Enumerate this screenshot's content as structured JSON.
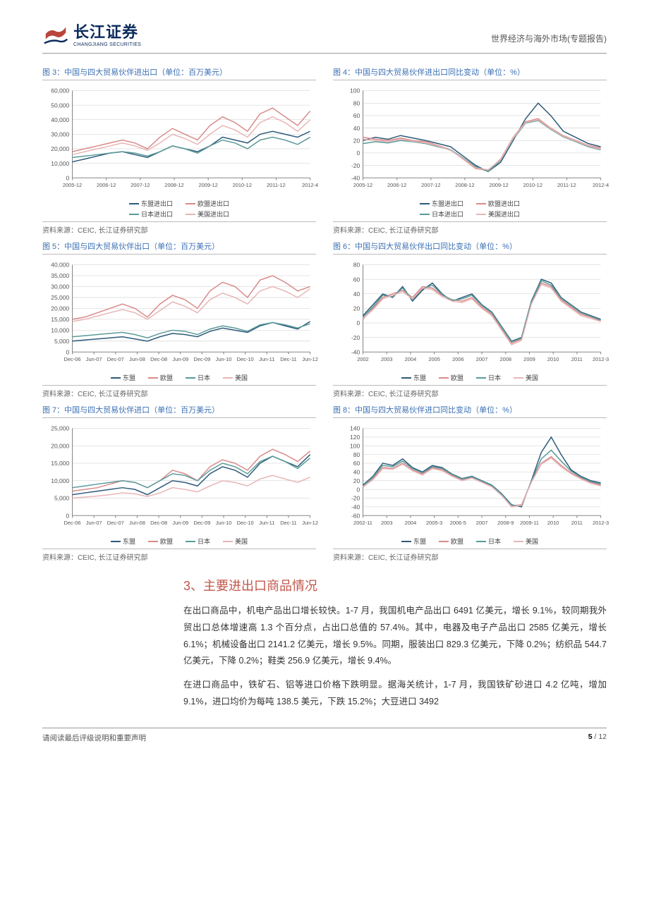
{
  "header": {
    "logo_cn": "长江证券",
    "logo_en": "CHANGJIANG SECURITIES",
    "right_text": "世界经济与海外市场(专题报告)"
  },
  "colors": {
    "title_blue": "#3b6fb3",
    "section_red": "#c1574b",
    "series_dark_blue": "#2d5a7a",
    "series_pink": "#d98a8a",
    "series_teal": "#5a9a9a",
    "series_light_pink": "#e8b5b5",
    "grid": "#cccccc",
    "axis": "#888888"
  },
  "charts": [
    {
      "id": "fig3",
      "title": "图 3：中国与四大贸易伙伴进出口（单位：百万美元）",
      "source": "资料来源：CEIC, 长江证券研究部",
      "ylim": [
        0,
        60000
      ],
      "ytick_step": 10000,
      "x_labels": [
        "2005-12",
        "2006-12",
        "2007-12",
        "2008-12",
        "2009-12",
        "2010-12",
        "2011-12",
        "2012-4"
      ],
      "series": [
        {
          "name": "东盟进出口",
          "color": "#2d5a7a",
          "values": [
            11000,
            13000,
            15000,
            17000,
            18000,
            16000,
            14000,
            18000,
            22000,
            20000,
            18000,
            22000,
            28000,
            26000,
            24000,
            30000,
            32000,
            30000,
            28000,
            32000
          ]
        },
        {
          "name": "欧盟进出口",
          "color": "#d98a8a",
          "values": [
            18000,
            20000,
            22000,
            24000,
            26000,
            24000,
            20000,
            28000,
            34000,
            30000,
            26000,
            36000,
            42000,
            38000,
            32000,
            44000,
            48000,
            42000,
            36000,
            46000
          ]
        },
        {
          "name": "日本进出口",
          "color": "#5a9a9a",
          "values": [
            14000,
            15000,
            16000,
            17000,
            18000,
            17000,
            15000,
            18000,
            22000,
            20000,
            17000,
            22000,
            26000,
            24000,
            20000,
            26000,
            28000,
            26000,
            23000,
            28000
          ]
        },
        {
          "name": "美国进出口",
          "color": "#e8b5b5",
          "values": [
            16000,
            18000,
            20000,
            22000,
            24000,
            22000,
            19000,
            24000,
            30000,
            27000,
            23000,
            30000,
            36000,
            33000,
            28000,
            38000,
            42000,
            38000,
            32000,
            40000
          ]
        }
      ],
      "legend_rows": [
        [
          "东盟进出口",
          "欧盟进出口"
        ],
        [
          "日本进出口",
          "美国进出口"
        ]
      ]
    },
    {
      "id": "fig4",
      "title": "图 4：中国与四大贸易伙伴进出口同比变动（单位：%）",
      "source": "资料来源：CEIC, 长江证券研究部",
      "ylim": [
        -40,
        100
      ],
      "ytick_step": 20,
      "x_labels": [
        "2005-12",
        "2006-12",
        "2007-12",
        "2008-12",
        "2009-12",
        "2010-12",
        "2011-12",
        "2012-4"
      ],
      "series": [
        {
          "name": "东盟进出口",
          "color": "#2d5a7a",
          "values": [
            20,
            25,
            22,
            28,
            24,
            20,
            15,
            10,
            -5,
            -20,
            -30,
            -15,
            20,
            55,
            80,
            60,
            35,
            25,
            15,
            10
          ]
        },
        {
          "name": "欧盟进出口",
          "color": "#d98a8a",
          "values": [
            25,
            22,
            20,
            24,
            20,
            18,
            12,
            5,
            -10,
            -25,
            -28,
            -10,
            25,
            50,
            55,
            40,
            28,
            20,
            12,
            8
          ]
        },
        {
          "name": "日本进出口",
          "color": "#5a9a9a",
          "values": [
            15,
            18,
            16,
            20,
            18,
            15,
            10,
            5,
            -8,
            -22,
            -30,
            -12,
            22,
            48,
            52,
            38,
            26,
            18,
            10,
            5
          ]
        },
        {
          "name": "美国进出口",
          "color": "#e8b5b5",
          "values": [
            22,
            20,
            18,
            22,
            19,
            16,
            11,
            4,
            -9,
            -24,
            -27,
            -11,
            24,
            49,
            53,
            39,
            27,
            19,
            11,
            6
          ]
        }
      ],
      "legend_rows": [
        [
          "东盟进出口",
          "欧盟进出口"
        ],
        [
          "日本进出口",
          "美国进出口"
        ]
      ]
    },
    {
      "id": "fig5",
      "title": "图 5：中国与四大贸易伙伴出口（单位：百万美元）",
      "source": "资料来源：CEIC, 长江证券研究部",
      "ylim": [
        0,
        40000
      ],
      "ytick_step": 5000,
      "x_labels": [
        "Dec-06",
        "Jun-07",
        "Dec-07",
        "Jun-08",
        "Dec-08",
        "Jun-09",
        "Dec-09",
        "Jun-10",
        "Dec-10",
        "Jun-11",
        "Dec-11",
        "Jun-12"
      ],
      "series": [
        {
          "name": "东盟",
          "color": "#2d5a7a",
          "values": [
            5000,
            5500,
            6000,
            6500,
            7000,
            6000,
            5000,
            7000,
            8500,
            8000,
            7000,
            9500,
            11000,
            10000,
            9000,
            12000,
            13500,
            12000,
            10500,
            14000
          ]
        },
        {
          "name": "欧盟",
          "color": "#d98a8a",
          "values": [
            15000,
            16000,
            18000,
            20000,
            22000,
            20000,
            16000,
            22000,
            26000,
            24000,
            20000,
            28000,
            32000,
            30000,
            25000,
            33000,
            35000,
            32000,
            28000,
            30000
          ]
        },
        {
          "name": "日本",
          "color": "#5a9a9a",
          "values": [
            7000,
            7500,
            8000,
            8500,
            9000,
            8000,
            6500,
            8500,
            10000,
            9500,
            8000,
            10500,
            12000,
            11000,
            9500,
            12500,
            13500,
            12500,
            11000,
            13000
          ]
        },
        {
          "name": "美国",
          "color": "#e8b5b5",
          "values": [
            14000,
            15000,
            16500,
            18000,
            19500,
            18000,
            15000,
            19000,
            23000,
            21000,
            18000,
            24000,
            27000,
            25000,
            22000,
            28000,
            30000,
            28000,
            25000,
            29000
          ]
        }
      ],
      "legend_rows": [
        [
          "东盟",
          "欧盟",
          "日本",
          "美国"
        ]
      ]
    },
    {
      "id": "fig6",
      "title": "图 6：中国与四大贸易伙伴出口同比变动（单位：%）",
      "source": "资料来源：CEIC, 长江证券研究部",
      "ylim": [
        -40,
        80
      ],
      "ytick_step": 20,
      "x_labels": [
        "2002",
        "2003",
        "2004",
        "2005",
        "2006",
        "2007",
        "2008",
        "2009",
        "2010",
        "2011",
        "2012-3"
      ],
      "series": [
        {
          "name": "东盟",
          "color": "#2d5a7a",
          "values": [
            10,
            25,
            40,
            35,
            50,
            30,
            45,
            55,
            40,
            30,
            35,
            40,
            25,
            15,
            -5,
            -25,
            -20,
            30,
            60,
            55,
            35,
            25,
            15,
            10,
            5
          ]
        },
        {
          "name": "欧盟",
          "color": "#d98a8a",
          "values": [
            5,
            20,
            35,
            40,
            45,
            35,
            50,
            48,
            38,
            32,
            30,
            35,
            22,
            12,
            -8,
            -28,
            -22,
            28,
            55,
            50,
            32,
            22,
            12,
            8,
            3
          ]
        },
        {
          "name": "日本",
          "color": "#5a9a9a",
          "values": [
            8,
            22,
            38,
            36,
            48,
            32,
            47,
            52,
            39,
            31,
            33,
            38,
            24,
            14,
            -6,
            -26,
            -21,
            29,
            58,
            52,
            34,
            24,
            14,
            9,
            4
          ]
        },
        {
          "name": "美国",
          "color": "#e8b5b5",
          "values": [
            6,
            18,
            33,
            38,
            43,
            33,
            48,
            46,
            36,
            30,
            28,
            33,
            20,
            10,
            -10,
            -30,
            -24,
            26,
            53,
            48,
            30,
            20,
            10,
            6,
            2
          ]
        }
      ],
      "legend_rows": [
        [
          "东盟",
          "欧盟",
          "日本",
          "美国"
        ]
      ]
    },
    {
      "id": "fig7",
      "title": "图 7：中国与四大贸易伙伴进口（单位：百万美元）",
      "source": "资料来源：CEIC, 长江证券研究部",
      "ylim": [
        0,
        25000
      ],
      "ytick_step": 5000,
      "x_labels": [
        "Dec-06",
        "Jun-07",
        "Dec-07",
        "Jun-08",
        "Dec-08",
        "Jun-09",
        "Dec-09",
        "Jun-10",
        "Dec-10",
        "Jun-11",
        "Dec-11",
        "Jun-12"
      ],
      "series": [
        {
          "name": "东盟",
          "color": "#2d5a7a",
          "values": [
            6000,
            6500,
            7000,
            7500,
            8000,
            7500,
            6000,
            8000,
            10000,
            9500,
            8500,
            12000,
            14000,
            13000,
            11000,
            15000,
            17000,
            15500,
            14000,
            17500
          ]
        },
        {
          "name": "欧盟",
          "color": "#d98a8a",
          "values": [
            7000,
            7500,
            8000,
            9000,
            10000,
            9500,
            8000,
            10000,
            13000,
            12000,
            10000,
            14000,
            16000,
            15000,
            13000,
            17000,
            19000,
            17500,
            15500,
            18500
          ]
        },
        {
          "name": "日本",
          "color": "#5a9a9a",
          "values": [
            8000,
            8500,
            9000,
            9500,
            10000,
            9500,
            8000,
            10000,
            12000,
            11500,
            10000,
            13000,
            15000,
            14000,
            12000,
            15500,
            17000,
            15500,
            13500,
            16500
          ]
        },
        {
          "name": "美国",
          "color": "#e8b5b5",
          "values": [
            5000,
            5300,
            5600,
            6000,
            6500,
            6200,
            5500,
            6500,
            8000,
            7500,
            6800,
            8500,
            10000,
            9500,
            8500,
            10500,
            11500,
            10500,
            9500,
            11000
          ]
        }
      ],
      "legend_rows": [
        [
          "东盟",
          "欧盟",
          "日本",
          "美国"
        ]
      ]
    },
    {
      "id": "fig8",
      "title": "图 8：中国与四大贸易伙伴进口同比变动（单位：%）",
      "source": "资料来源：CEIC, 长江证券研究部",
      "ylim": [
        -60,
        140
      ],
      "ytick_step": 20,
      "x_labels": [
        "2002-11",
        "2003",
        "2004",
        "2005-3",
        "2006-5",
        "2007",
        "2008-9",
        "2009-11",
        "2010",
        "2011",
        "2012-3"
      ],
      "series": [
        {
          "name": "东盟",
          "color": "#2d5a7a",
          "values": [
            10,
            30,
            60,
            55,
            70,
            50,
            40,
            55,
            50,
            35,
            25,
            30,
            20,
            10,
            -10,
            -35,
            -40,
            20,
            85,
            120,
            80,
            45,
            30,
            20,
            15
          ]
        },
        {
          "name": "欧盟",
          "color": "#d98a8a",
          "values": [
            5,
            25,
            50,
            48,
            60,
            45,
            35,
            50,
            45,
            32,
            22,
            28,
            18,
            8,
            -12,
            -38,
            -35,
            18,
            60,
            75,
            55,
            38,
            26,
            16,
            10
          ]
        },
        {
          "name": "日本",
          "color": "#5a9a9a",
          "values": [
            8,
            28,
            55,
            52,
            65,
            48,
            38,
            52,
            48,
            34,
            24,
            29,
            19,
            9,
            -11,
            -36,
            -38,
            19,
            70,
            90,
            65,
            42,
            28,
            18,
            12
          ]
        },
        {
          "name": "美国",
          "color": "#e8b5b5",
          "values": [
            6,
            22,
            48,
            46,
            58,
            43,
            33,
            48,
            43,
            30,
            20,
            26,
            16,
            6,
            -14,
            -40,
            -36,
            16,
            58,
            72,
            52,
            36,
            24,
            14,
            8
          ]
        }
      ],
      "legend_rows": [
        [
          "东盟",
          "欧盟",
          "日本",
          "美国"
        ]
      ]
    }
  ],
  "section": {
    "title": "3、主要进出口商品情况",
    "para1": "在出口商品中，机电产品出口增长较快。1-7 月，我国机电产品出口 6491 亿美元，增长 9.1%，较同期我外贸出口总体增速高 1.3 个百分点，占出口总值的 57.4%。其中，电器及电子产品出口 2585 亿美元，增长 6.1%；机械设备出口 2141.2 亿美元，增长 9.5%。同期，服装出口 829.3 亿美元，下降 0.2%；纺织品 544.7 亿美元，下降 0.2%；鞋类 256.9 亿美元，增长 9.4%。",
    "para2": "在进口商品中，铁矿石、铝等进口价格下跌明显。据海关统计，1-7 月，我国铁矿砂进口 4.2 亿吨，增加 9.1%，进口均价为每吨 138.5 美元，下跌 15.2%；大豆进口 3492"
  },
  "footer": {
    "left": "请阅读最后评级说明和重要声明",
    "page_cur": "5",
    "page_total": "12"
  }
}
